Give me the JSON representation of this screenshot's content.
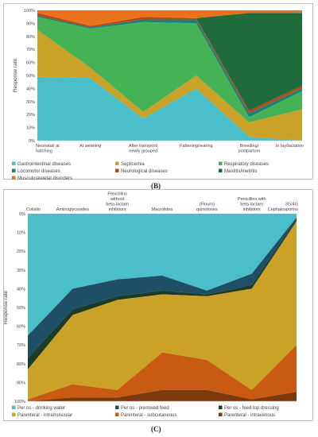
{
  "panels": {
    "b_label": "(B)",
    "c_label": "(C)"
  },
  "chart_data": [
    {
      "type": "area",
      "stacked": true,
      "percent": true,
      "ylabel": "Response rate",
      "ylim": [
        0,
        100
      ],
      "yticks": [
        "0%",
        "10%",
        "20%",
        "30%",
        "40%",
        "50%",
        "60%",
        "70%",
        "80%",
        "90%",
        "100%"
      ],
      "categories": [
        "Neonatal/ at hatching",
        "At weaning",
        "After transport/ newly grouped",
        "Fattening/rearing",
        "Breeding/ postpartum",
        "In lay/lactation"
      ],
      "legend_position": "bottom",
      "series": [
        {
          "name": "Gastrointestinal diseases",
          "color": "#4bbfc9",
          "values": [
            49,
            48,
            17,
            40,
            3,
            0
          ]
        },
        {
          "name": "Septicemia",
          "color": "#c9a227",
          "values": [
            36,
            8,
            5,
            10,
            11,
            24
          ]
        },
        {
          "name": "Respiratory diseases",
          "color": "#46b256",
          "values": [
            10,
            30,
            69,
            40,
            4,
            14
          ]
        },
        {
          "name": "Locomotor diseases",
          "color": "#1e7f7a",
          "values": [
            1,
            1,
            2,
            3,
            3,
            2
          ]
        },
        {
          "name": "Neurological diseases",
          "color": "#b94712",
          "values": [
            2,
            1,
            2,
            1,
            2,
            2
          ]
        },
        {
          "name": "Mastitis/metritis",
          "color": "#1f6b3c",
          "values": [
            0,
            0,
            0,
            0,
            75,
            56
          ]
        },
        {
          "name": "Musculoskeletal disorders",
          "color": "#e8731a",
          "values": [
            2,
            12,
            5,
            6,
            2,
            2
          ]
        }
      ]
    },
    {
      "type": "area",
      "stacked": true,
      "percent": true,
      "ylabel": "Response rate",
      "ylim": [
        0,
        100
      ],
      "y_inverted": true,
      "yticks": [
        "0%",
        "10%",
        "20%",
        "30%",
        "40%",
        "50%",
        "60%",
        "70%",
        "80%",
        "90%",
        "100%"
      ],
      "categories": [
        "Colistin",
        "Aminoglycosides",
        "Penicillins without beta-lactam inhibitors",
        "Macrolides",
        "(Flouro) quinolones",
        "Penicillins with beta-lactam inhibitors",
        "3G/4G Cephalosporins"
      ],
      "legend_position": "bottom",
      "series": [
        {
          "name": "Per os - drinking water",
          "color": "#4bbfc9",
          "values": [
            65,
            40,
            35,
            33,
            41,
            32,
            2
          ]
        },
        {
          "name": "Per os - premixed feed",
          "color": "#1f4f66",
          "values": [
            12,
            11,
            9,
            8,
            2,
            6,
            1
          ]
        },
        {
          "name": "Per os - feed top dressing",
          "color": "#1c3b28",
          "values": [
            6,
            3,
            2,
            2,
            1,
            2,
            1
          ]
        },
        {
          "name": "Parenteral - intramuscular",
          "color": "#c9a227",
          "values": [
            16,
            37,
            48,
            31,
            34,
            54,
            66
          ]
        },
        {
          "name": "Parenteral - subcutaneous",
          "color": "#c95a12",
          "values": [
            1,
            7,
            4,
            20,
            16,
            5,
            25
          ]
        },
        {
          "name": "Parenteral - intravenous",
          "color": "#7a3a0e",
          "values": [
            0,
            2,
            2,
            6,
            6,
            1,
            5
          ]
        }
      ]
    }
  ]
}
